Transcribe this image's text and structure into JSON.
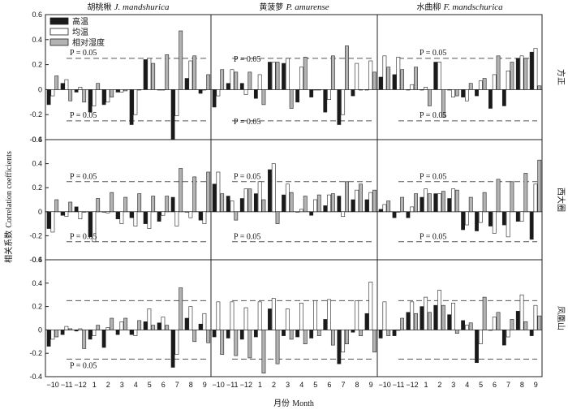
{
  "chart_data": {
    "type": "bar",
    "categories": [
      "-10",
      "-11",
      "-12",
      "1",
      "2",
      "3",
      "4",
      "5",
      "6",
      "7",
      "8",
      "9"
    ],
    "ylabel_cn": "相关系数",
    "ylabel_en": "Correlation coefficients",
    "xlabel_cn": "月份",
    "xlabel_en": "Month",
    "ylim": [
      -0.4,
      0.6
    ],
    "yticks": [
      "-0.4",
      "-0.2",
      "0",
      "0.2",
      "0.4",
      "0.6"
    ],
    "significance": {
      "level": 0.05,
      "upper": 0.25,
      "lower": -0.25,
      "label": "P = 0.05"
    },
    "legend": [
      {
        "key": "high",
        "label": "高温",
        "color": "#1a1a1a"
      },
      {
        "key": "mean",
        "label": "均温",
        "color": "#ffffff"
      },
      {
        "key": "rh",
        "label": "相对湿度",
        "color": "#b3b3b3"
      }
    ],
    "columns": [
      {
        "title_cn": "胡桃楸",
        "title_it": "J. mandshurica"
      },
      {
        "title_cn": "黄菠萝",
        "title_it": "P. amurense"
      },
      {
        "title_cn": "水曲柳",
        "title_it": "F. mandschurica"
      }
    ],
    "rows": [
      "方正",
      "西大圈",
      "凤凰山"
    ],
    "panels": [
      [
        {
          "series": [
            {
              "name": "高温",
              "values": [
                -0.12,
                0.05,
                -0.02,
                -0.18,
                -0.12,
                -0.02,
                -0.28,
                0.24,
                0.0,
                -0.4,
                0.09,
                -0.03
              ]
            },
            {
              "name": "均温",
              "values": [
                -0.05,
                0.08,
                0.02,
                -0.13,
                -0.1,
                -0.02,
                -0.2,
                0.25,
                0.0,
                -0.21,
                0.23,
                0.0
              ]
            },
            {
              "name": "相对湿度",
              "values": [
                0.11,
                -0.09,
                -0.1,
                0.05,
                -0.06,
                -0.01,
                0.0,
                0.21,
                0.28,
                0.47,
                0.27,
                0.12
              ]
            }
          ]
        },
        {
          "series": [
            {
              "name": "高温",
              "values": [
                -0.14,
                0.05,
                0.05,
                -0.07,
                0.22,
                0.21,
                -0.1,
                -0.06,
                -0.18,
                -0.28,
                -0.05,
                0.0
              ]
            },
            {
              "name": "均温",
              "values": [
                -0.05,
                0.16,
                -0.04,
                0.12,
                0.22,
                0.25,
                0.18,
                0.0,
                -0.08,
                -0.2,
                0.21,
                0.23
              ]
            },
            {
              "name": "相对湿度",
              "values": [
                0.16,
                0.14,
                0.14,
                -0.12,
                0.22,
                -0.15,
                0.26,
                0.0,
                0.27,
                0.35,
                0.0,
                0.14
              ]
            }
          ]
        },
        {
          "series": [
            {
              "name": "高温",
              "values": [
                0.1,
                0.12,
                0.0,
                0.0,
                0.22,
                0.0,
                -0.06,
                -0.05,
                -0.15,
                -0.13,
                0.25,
                0.3
              ]
            },
            {
              "name": "均温",
              "values": [
                0.27,
                0.26,
                0.04,
                0.02,
                0.22,
                -0.06,
                -0.09,
                0.07,
                0.12,
                0.15,
                0.27,
                0.33
              ]
            },
            {
              "name": "相对湿度",
              "values": [
                0.18,
                0.16,
                0.18,
                -0.13,
                -0.22,
                -0.05,
                0.05,
                0.09,
                0.27,
                0.22,
                0.25,
                0.03
              ]
            }
          ]
        }
      ],
      [
        {
          "series": [
            {
              "name": "高温",
              "values": [
                -0.14,
                -0.03,
                0.04,
                -0.21,
                0.0,
                -0.06,
                -0.05,
                -0.1,
                -0.08,
                0.12,
                0.0,
                -0.07
              ]
            },
            {
              "name": "均温",
              "values": [
                -0.17,
                -0.04,
                -0.06,
                -0.25,
                -0.01,
                -0.1,
                -0.12,
                -0.14,
                -0.03,
                -0.12,
                -0.05,
                -0.1
              ]
            },
            {
              "name": "相对湿度",
              "values": [
                0.1,
                0.08,
                0.0,
                0.11,
                0.16,
                0.12,
                0.15,
                0.13,
                0.13,
                0.36,
                0.29,
                0.33
              ]
            }
          ]
        },
        {
          "series": [
            {
              "name": "高温",
              "values": [
                0.23,
                0.13,
                0.11,
                0.15,
                0.35,
                0.14,
                0.0,
                -0.03,
                0.05,
                0.13,
                0.1,
                0.1
              ]
            },
            {
              "name": "均温",
              "values": [
                0.33,
                0.09,
                0.19,
                0.25,
                0.4,
                0.23,
                0.02,
                0.1,
                0.14,
                -0.04,
                0.18,
                0.16
              ]
            },
            {
              "name": "相对湿度",
              "values": [
                0.15,
                -0.07,
                0.19,
                0.1,
                -0.1,
                0.16,
                0.13,
                0.14,
                0.15,
                0.25,
                0.23,
                0.18
              ]
            }
          ]
        },
        {
          "series": [
            {
              "name": "高温",
              "values": [
                0.02,
                -0.05,
                -0.05,
                0.12,
                0.15,
                0.11,
                -0.15,
                -0.16,
                -0.12,
                -0.11,
                -0.08,
                -0.23
              ]
            },
            {
              "name": "均温",
              "values": [
                0.06,
                0.0,
                0.04,
                0.19,
                0.15,
                0.19,
                -0.11,
                -0.09,
                -0.18,
                -0.21,
                -0.08,
                0.23
              ]
            },
            {
              "name": "相对湿度",
              "values": [
                0.09,
                0.12,
                0.15,
                0.15,
                0.17,
                0.18,
                0.12,
                0.16,
                0.27,
                0.25,
                0.32,
                0.43
              ]
            }
          ]
        }
      ],
      [
        {
          "series": [
            {
              "name": "高温",
              "values": [
                -0.14,
                -0.04,
                -0.01,
                -0.08,
                -0.15,
                -0.04,
                -0.04,
                0.07,
                0.06,
                -0.32,
                0.1,
                0.05
              ]
            },
            {
              "name": "均温",
              "values": [
                -0.08,
                0.03,
                0.01,
                -0.05,
                0.02,
                0.07,
                -0.05,
                0.18,
                0.11,
                -0.21,
                0.2,
                0.14
              ]
            },
            {
              "name": "相对湿度",
              "values": [
                -0.06,
                0.01,
                -0.16,
                0.04,
                0.1,
                0.1,
                0.08,
                0.04,
                0.04,
                0.36,
                -0.1,
                -0.11
              ]
            }
          ]
        },
        {
          "series": [
            {
              "name": "高温",
              "values": [
                -0.06,
                -0.07,
                -0.08,
                -0.06,
                0.18,
                -0.05,
                -0.06,
                -0.07,
                0.09,
                -0.29,
                -0.02,
                0.14
              ]
            },
            {
              "name": "均温",
              "values": [
                0.24,
                0.24,
                0.19,
                0.24,
                0.27,
                0.18,
                0.23,
                0.25,
                0.26,
                -0.19,
                0.25,
                0.41
              ]
            },
            {
              "name": "相对湿度",
              "values": [
                -0.21,
                -0.22,
                -0.24,
                -0.37,
                -0.29,
                -0.08,
                -0.12,
                -0.05,
                -0.13,
                -0.12,
                -0.05,
                -0.19
              ]
            }
          ]
        },
        {
          "series": [
            {
              "name": "高温",
              "values": [
                -0.07,
                -0.05,
                0.15,
                0.2,
                0.21,
                0.13,
                0.08,
                -0.28,
                0.0,
                -0.13,
                0.16,
                -0.05
              ]
            },
            {
              "name": "均温",
              "values": [
                0.24,
                0.0,
                0.24,
                0.28,
                0.34,
                0.23,
                0.04,
                -0.12,
                0.11,
                -0.06,
                0.3,
                0.21
              ]
            },
            {
              "name": "相对湿度",
              "values": [
                -0.05,
                0.1,
                0.14,
                0.15,
                0.21,
                -0.03,
                0.06,
                0.28,
                0.15,
                0.09,
                0.07,
                0.12
              ]
            }
          ]
        }
      ]
    ]
  }
}
